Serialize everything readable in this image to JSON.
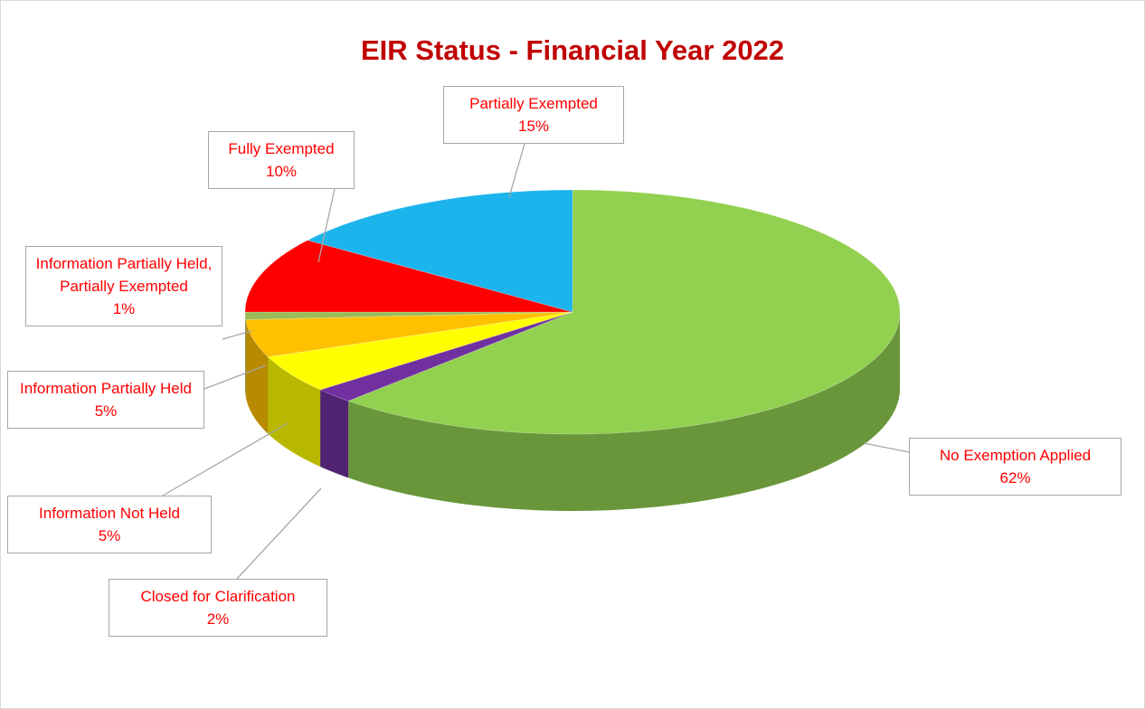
{
  "chart_data": {
    "type": "pie",
    "title": "EIR Status - Financial Year 2022",
    "categories": [
      "No Exemption Applied",
      "Closed for Clarification",
      "Information Not Held",
      "Information Partially Held",
      "Information Partially Held, Partially Exempted",
      "Fully Exempted",
      "Partially Exempted"
    ],
    "values": [
      62,
      2,
      5,
      5,
      1,
      10,
      15
    ],
    "value_labels": [
      "62%",
      "2%",
      "5%",
      "5%",
      "1%",
      "10%",
      "15%"
    ],
    "colors": [
      "#92d050",
      "#7030a0",
      "#ffff00",
      "#ffc000",
      "#9bbb59",
      "#ff0000",
      "#1cb4ec"
    ]
  }
}
